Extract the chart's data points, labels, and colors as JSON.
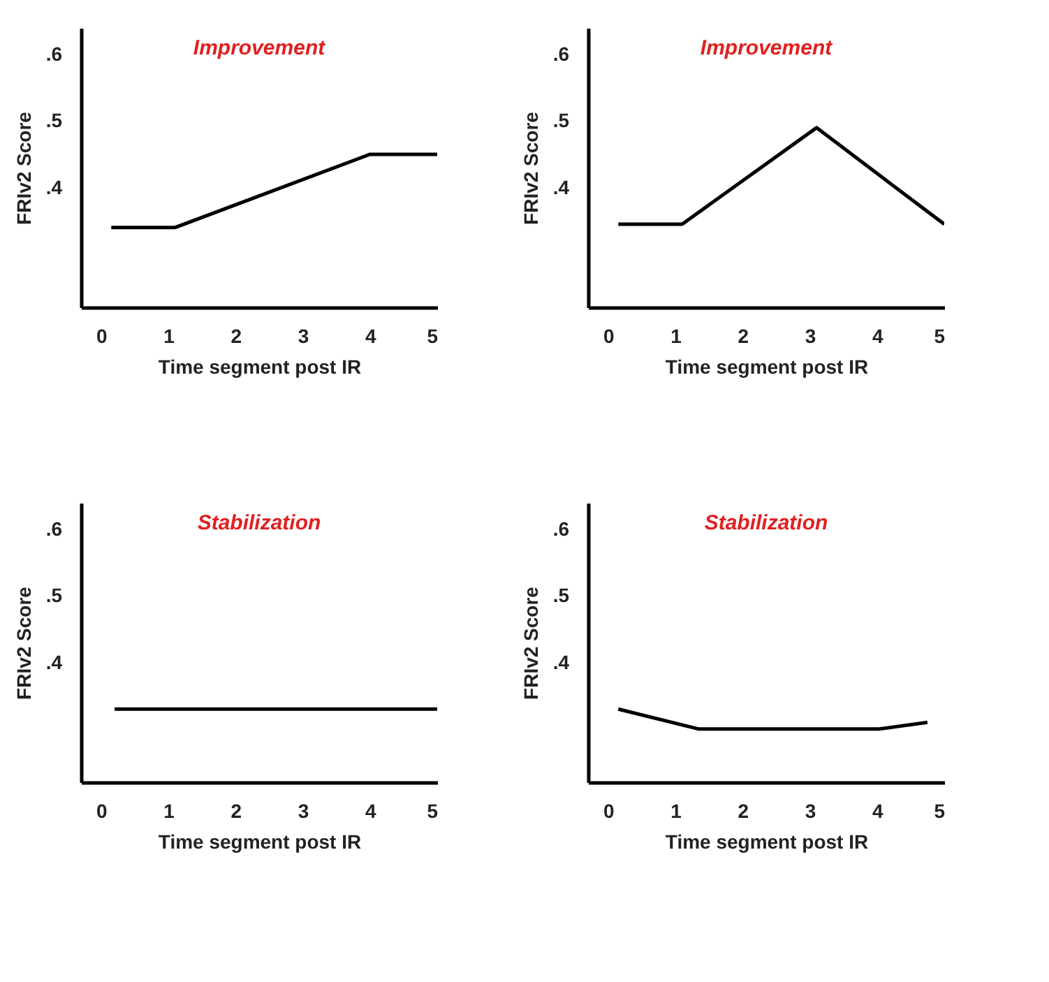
{
  "chart_data": [
    {
      "type": "line",
      "title": "Improvement",
      "xlabel": "Time segment post IR",
      "ylabel": "FRIv2 Score",
      "xlim": [
        -0.3,
        5
      ],
      "xticks": [
        0,
        1,
        2,
        3,
        4,
        5
      ],
      "ylim": [
        0.22,
        0.64
      ],
      "yticks": [
        {
          "value": 0.4,
          "label": ".4"
        },
        {
          "value": 0.5,
          "label": ".5"
        },
        {
          "value": 0.6,
          "label": ".6"
        }
      ],
      "grid": false,
      "series": [
        {
          "color": "#000000",
          "x": [
            0.15,
            1.1,
            4,
            5
          ],
          "values": [
            0.34,
            0.34,
            0.45,
            0.45
          ]
        }
      ]
    },
    {
      "type": "line",
      "title": "Improvement",
      "xlabel": "Time segment post IR",
      "ylabel": "FRIv2 Score",
      "xlim": [
        -0.3,
        5
      ],
      "xticks": [
        0,
        1,
        2,
        3,
        4,
        5
      ],
      "ylim": [
        0.22,
        0.64
      ],
      "yticks": [
        {
          "value": 0.4,
          "label": ".4"
        },
        {
          "value": 0.5,
          "label": ".5"
        },
        {
          "value": 0.6,
          "label": ".6"
        }
      ],
      "grid": false,
      "series": [
        {
          "color": "#000000",
          "x": [
            0.15,
            1.1,
            3.1,
            5
          ],
          "values": [
            0.345,
            0.345,
            0.49,
            0.345
          ]
        }
      ]
    },
    {
      "type": "line",
      "title": "Stabilization",
      "xlabel": "Time segment post IR",
      "ylabel": "FRIv2 Score",
      "xlim": [
        -0.3,
        5
      ],
      "xticks": [
        0,
        1,
        2,
        3,
        4,
        5
      ],
      "ylim": [
        0.22,
        0.64
      ],
      "yticks": [
        {
          "value": 0.4,
          "label": ".4"
        },
        {
          "value": 0.5,
          "label": ".5"
        },
        {
          "value": 0.6,
          "label": ".6"
        }
      ],
      "grid": false,
      "series": [
        {
          "color": "#000000",
          "x": [
            0.2,
            5
          ],
          "values": [
            0.33,
            0.33
          ]
        }
      ]
    },
    {
      "type": "line",
      "title": "Stabilization",
      "xlabel": "Time segment post IR",
      "ylabel": "FRIv2 Score",
      "xlim": [
        -0.3,
        5
      ],
      "xticks": [
        0,
        1,
        2,
        3,
        4,
        5
      ],
      "ylim": [
        0.22,
        0.64
      ],
      "yticks": [
        {
          "value": 0.4,
          "label": ".4"
        },
        {
          "value": 0.5,
          "label": ".5"
        },
        {
          "value": 0.6,
          "label": ".6"
        }
      ],
      "grid": false,
      "series": [
        {
          "color": "#000000",
          "x": [
            0.15,
            1.35,
            4.03,
            4.75
          ],
          "values": [
            0.33,
            0.3,
            0.3,
            0.31
          ]
        }
      ]
    }
  ]
}
